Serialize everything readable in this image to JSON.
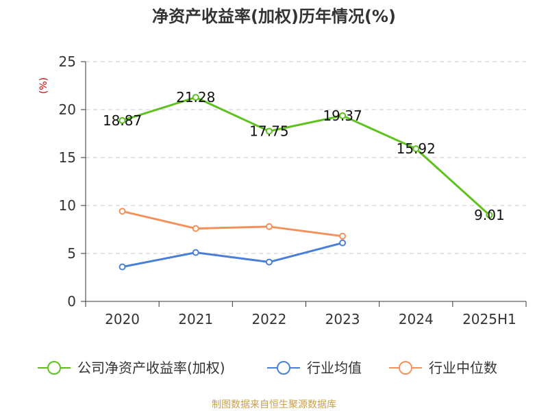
{
  "chart_data": {
    "type": "line",
    "title": "净资产收益率(加权)历年情况(%)",
    "ylabel": "(%)",
    "categories": [
      "2020",
      "2021",
      "2022",
      "2023",
      "2024",
      "2025H1"
    ],
    "ylim": [
      0,
      25
    ],
    "yticks": [
      0,
      5,
      10,
      15,
      20,
      25
    ],
    "grid": true,
    "legend_position": "bottom",
    "series": [
      {
        "name": "公司净资产收益率(加权)",
        "color": "#5dc21e",
        "values": [
          18.87,
          21.28,
          17.75,
          19.37,
          15.92,
          9.01
        ],
        "labels": [
          "18.87",
          "21.28",
          "17.75",
          "19.37",
          "15.92",
          "9.01"
        ]
      },
      {
        "name": "行业均值",
        "color": "#4a7fd9",
        "values": [
          3.6,
          5.1,
          4.1,
          6.1,
          null,
          null
        ]
      },
      {
        "name": "行业中位数",
        "color": "#f5905a",
        "values": [
          9.4,
          7.6,
          7.8,
          6.8,
          null,
          null
        ]
      }
    ],
    "source": "制图数据来自恒生聚源数据库"
  }
}
